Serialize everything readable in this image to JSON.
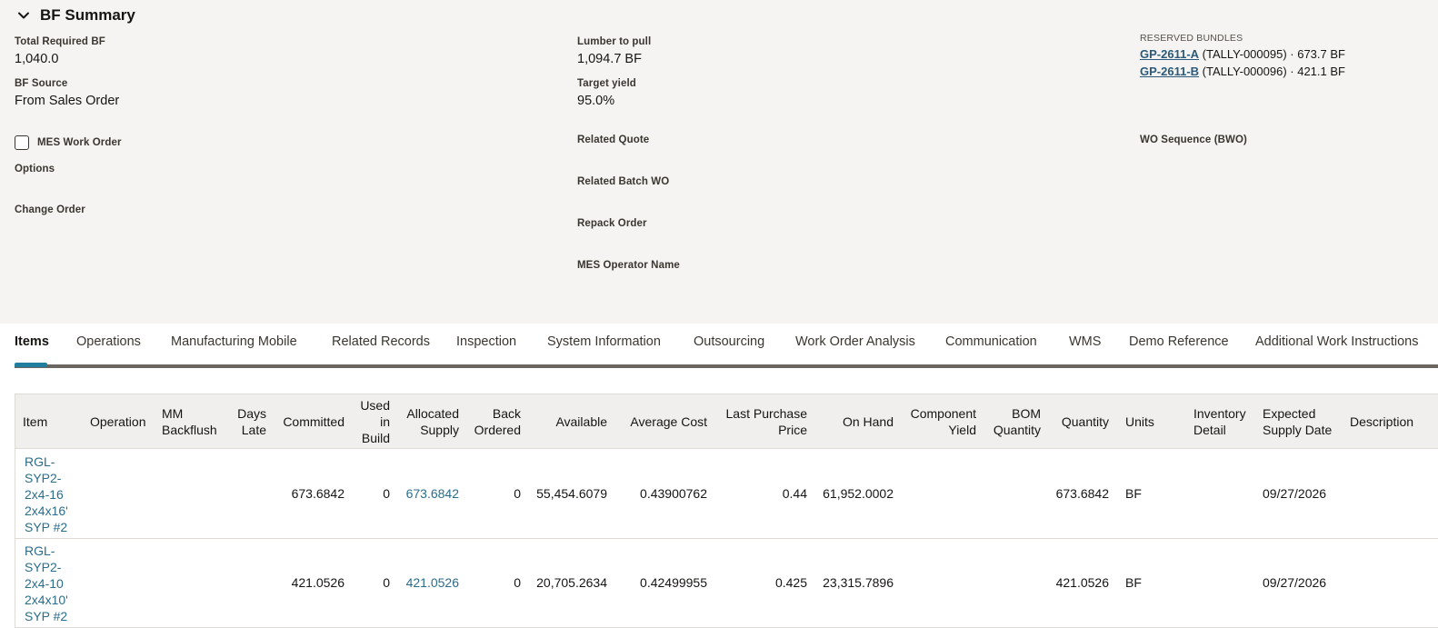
{
  "summary": {
    "title": "BF Summary",
    "total_required": {
      "label": "Total Required BF",
      "value": "1,040.0"
    },
    "bf_source": {
      "label": "BF Source",
      "value": "From Sales Order"
    },
    "mes_work_order": {
      "label": "MES Work Order",
      "checked": false
    },
    "options": {
      "label": "Options"
    },
    "change_order": {
      "label": "Change Order"
    },
    "lumber_to_pull": {
      "label": "Lumber to pull",
      "value": "1,094.7 BF"
    },
    "target_yield": {
      "label": "Target yield",
      "value": "95.0%"
    },
    "related_quote": {
      "label": "Related Quote"
    },
    "related_batch_wo": {
      "label": "Related Batch WO"
    },
    "repack_order": {
      "label": "Repack Order"
    },
    "mes_operator_name": {
      "label": "MES Operator Name"
    },
    "reserved_bundles": {
      "caption": "RESERVED BUNDLES",
      "items": [
        {
          "id": "GP-2611-A",
          "detail": "(TALLY-000095) · 673.7 BF"
        },
        {
          "id": "GP-2611-B",
          "detail": "(TALLY-000096) · 421.1 BF"
        }
      ]
    },
    "wo_sequence": {
      "label": "WO Sequence (BWO)"
    }
  },
  "tabs": [
    {
      "label": "Items",
      "active": true
    },
    {
      "label": "Operations"
    },
    {
      "label": "Manufacturing Mobile"
    },
    {
      "label": "Related Records"
    },
    {
      "label": "Inspection"
    },
    {
      "label": "System Information"
    },
    {
      "label": "Outsourcing"
    },
    {
      "label": "Work Order Analysis"
    },
    {
      "label": "Communication"
    },
    {
      "label": "WMS"
    },
    {
      "label": "Demo Reference"
    },
    {
      "label": "Additional Work Instructions"
    }
  ],
  "grid": {
    "columns": {
      "item": "Item",
      "operation": "Operation",
      "mm_backflush": "MM Backflush",
      "days_late": "Days Late",
      "committed": "Committed",
      "used_in_build": "Used in Build",
      "allocated_supply": "Allocated Supply",
      "back_ordered": "Back Ordered",
      "available": "Available",
      "average_cost": "Average Cost",
      "last_purchase_price": "Last Purchase Price",
      "on_hand": "On Hand",
      "component_yield": "Component Yield",
      "bom_quantity": "BOM Quantity",
      "quantity": "Quantity",
      "units": "Units",
      "inventory_detail": "Inventory Detail",
      "expected_supply_date": "Expected Supply Date",
      "description": "Description"
    },
    "rows": [
      {
        "item": "RGL-SYP2-2x4-16 2x4x16' SYP #2",
        "committed": "673.6842",
        "used_in_build": "0",
        "allocated_supply": "673.6842",
        "back_ordered": "0",
        "available": "55,454.6079",
        "average_cost": "0.43900762",
        "last_purchase_price": "0.44",
        "on_hand": "61,952.0002",
        "quantity": "673.6842",
        "units": "BF",
        "expected_supply_date": "09/27/2026"
      },
      {
        "item": "RGL-SYP2-2x4-10 2x4x10' SYP #2",
        "committed": "421.0526",
        "used_in_build": "0",
        "allocated_supply": "421.0526",
        "back_ordered": "0",
        "available": "20,705.2634",
        "average_cost": "0.42499955",
        "last_purchase_price": "0.425",
        "on_hand": "23,315.7896",
        "quantity": "421.0526",
        "units": "BF",
        "expected_supply_date": "09/27/2026"
      }
    ]
  }
}
